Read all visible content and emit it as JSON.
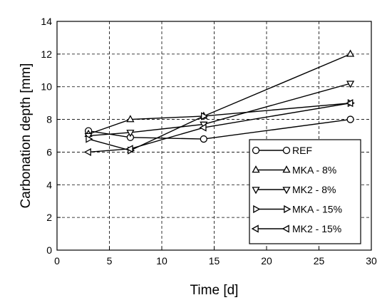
{
  "chart_data": {
    "type": "line",
    "xlabel": "Time [d]",
    "ylabel": "Carbonation depth [mm]",
    "xlim": [
      0,
      30
    ],
    "ylim": [
      0,
      14
    ],
    "xticks": [
      0,
      5,
      10,
      15,
      20,
      25,
      30
    ],
    "yticks": [
      0,
      2,
      4,
      6,
      8,
      10,
      12,
      14
    ],
    "grid": true,
    "legend_position": "bottom-right",
    "series": [
      {
        "name": "REF",
        "marker": "circle",
        "x": [
          3,
          7,
          14,
          28
        ],
        "y": [
          7.3,
          6.9,
          6.8,
          8.0
        ]
      },
      {
        "name": "MKA - 8%",
        "marker": "triangle-up",
        "x": [
          3,
          7,
          14,
          28
        ],
        "y": [
          7.1,
          8.0,
          8.2,
          12.0
        ]
      },
      {
        "name": "MK2 - 8%",
        "marker": "triangle-down",
        "x": [
          3,
          7,
          14,
          28
        ],
        "y": [
          7.0,
          7.2,
          7.7,
          10.2
        ]
      },
      {
        "name": "MKA - 15%",
        "marker": "triangle-right",
        "x": [
          3,
          7,
          14,
          28
        ],
        "y": [
          6.8,
          6.1,
          8.2,
          9.0
        ]
      },
      {
        "name": "MK2 - 15%",
        "marker": "triangle-left",
        "x": [
          3,
          7,
          14,
          28
        ],
        "y": [
          6.0,
          6.2,
          7.5,
          9.0
        ]
      }
    ]
  }
}
